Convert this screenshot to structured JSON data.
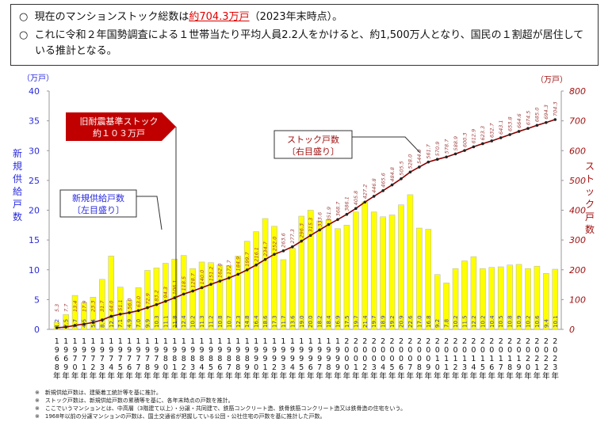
{
  "summary": {
    "bullet": "○",
    "line1_prefix": "現在のマンションストック総数は",
    "line1_highlight": "約704.3万戸",
    "line1_suffix": "（2023年末時点）。",
    "line2": "これに令和２年国勢調査による１世帯当たり平均人員2.2人をかけると、約1,500万人となり、国民の１割超が居住している推計となる。"
  },
  "annotations": {
    "old_standard_line1": "旧耐震基準ストック",
    "old_standard_line2": "約１０３万戸",
    "supply_line1": "新規供給戸数",
    "supply_line2": "〔左目盛り〕",
    "stock_line1": "ストック戸数",
    "stock_line2": "〔右目盛り〕"
  },
  "notes": [
    "※　新規供給戸数は、建築着工統計等を基に推計。",
    "※　ストック戸数は、新規供給戸数の累積等を基に、各年末時点の戸数を推計。",
    "※　ここでいうマンションとは、中高層（3階建て以上）・分譲・共同建で、鉄筋コンクリート造、鉄骨鉄筋コンクリート造又は鉄骨造の住宅をいう。",
    "※　1968年以前の分譲マンションの戸数は、国土交通省が把握している公団・公社住宅の戸数を基に推計した戸数。"
  ],
  "chart_data": {
    "type": "bar+line",
    "ylabel_left": "新規供給戸数",
    "yunit_left": "（万戸）",
    "ylabel_right": "ストック戸数",
    "yunit_right": "（万戸）",
    "ylim_left": [
      0,
      40
    ],
    "yticks_left": [
      "0",
      "5",
      "10",
      "15",
      "20",
      "25",
      "30",
      "35",
      "40"
    ],
    "ylim_right": [
      0,
      800
    ],
    "yticks_right": [
      "0",
      "100",
      "200",
      "300",
      "400",
      "500",
      "600",
      "700",
      "800"
    ],
    "year_suffix": "年",
    "categories": [
      "1968",
      "1969",
      "1970",
      "1971",
      "1972",
      "1973",
      "1974",
      "1975",
      "1976",
      "1977",
      "1978",
      "1979",
      "1980",
      "1981",
      "1982",
      "1983",
      "1984",
      "1985",
      "1986",
      "1987",
      "1988",
      "1989",
      "1990",
      "1991",
      "1992",
      "1993",
      "1994",
      "1995",
      "1996",
      "1997",
      "1998",
      "1999",
      "2000",
      "2001",
      "2002",
      "2003",
      "2004",
      "2005",
      "2006",
      "2007",
      "2008",
      "2009",
      "2010",
      "2011",
      "2012",
      "2013",
      "2014",
      "2015",
      "2016",
      "2017",
      "2018",
      "2019",
      "2020",
      "2021",
      "2022",
      "2023"
    ],
    "series": [
      {
        "name": "新規供給戸数",
        "axis": "left",
        "type": "bar",
        "color": "#ffff00",
        "values": [
          1.2,
          2.5,
          5.7,
          4.5,
          5.4,
          8.4,
          12.3,
          7.1,
          4.9,
          7.0,
          9.9,
          10.3,
          11.1,
          11.8,
          12.4,
          10.2,
          11.3,
          11.2,
          10.8,
          10.7,
          12.3,
          14.8,
          16.4,
          18.6,
          17.3,
          11.7,
          13.6,
          19.0,
          20.0,
          18.2,
          18.4,
          16.9,
          17.5,
          19.7,
          21.4,
          19.7,
          18.9,
          19.2,
          20.9,
          22.6,
          17.0,
          16.8,
          9.2,
          7.8,
          10.2,
          11.5,
          12.2,
          10.2,
          10.4,
          10.5,
          10.8,
          10.9,
          10.2,
          10.6,
          9.4,
          10.1
        ]
      },
      {
        "name": "ストック戸数",
        "axis": "right",
        "type": "line",
        "color": "#8b0000",
        "values": [
          5.3,
          7.7,
          13.4,
          17.9,
          23.3,
          31.7,
          44.0,
          51.1,
          56.0,
          63.0,
          72.9,
          83.2,
          94.3,
          106.1,
          118.5,
          128.7,
          140.0,
          151.2,
          162.0,
          172.7,
          184.9,
          199.7,
          216.1,
          234.7,
          252.0,
          263.6,
          277.3,
          296.3,
          315.3,
          333.6,
          351.9,
          368.7,
          386.1,
          405.8,
          427.2,
          446.8,
          465.6,
          484.8,
          505.5,
          528.0,
          544.9,
          561.7,
          570.9,
          578.7,
          588.9,
          600.3,
          612.9,
          623.3,
          632.7,
          643.1,
          653.8,
          664.6,
          674.5,
          685.0,
          694.3,
          704.3
        ]
      }
    ]
  }
}
